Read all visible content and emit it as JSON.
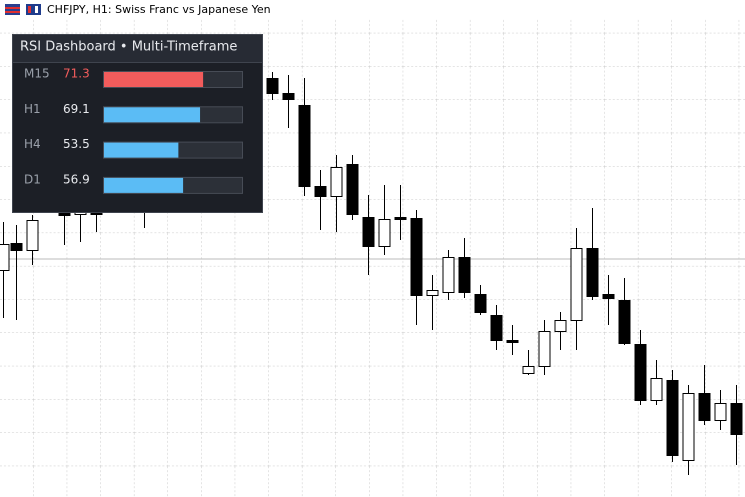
{
  "window": {
    "symbol_title": "CHFJPY, H1:  Swiss Franc vs Japanese Yen"
  },
  "dashboard": {
    "title": "RSI Dashboard • Multi-Timeframe",
    "scale": [
      0,
      100
    ],
    "rows": [
      {
        "timeframe": "M15",
        "value": 71.3,
        "color": "#f25c5c"
      },
      {
        "timeframe": "H1",
        "value": 69.1,
        "color": "#5bbcf5"
      },
      {
        "timeframe": "H4",
        "value": 53.5,
        "color": "#5bbcf5"
      },
      {
        "timeframe": "D1",
        "value": 56.9,
        "color": "#5bbcf5"
      }
    ]
  }
}
